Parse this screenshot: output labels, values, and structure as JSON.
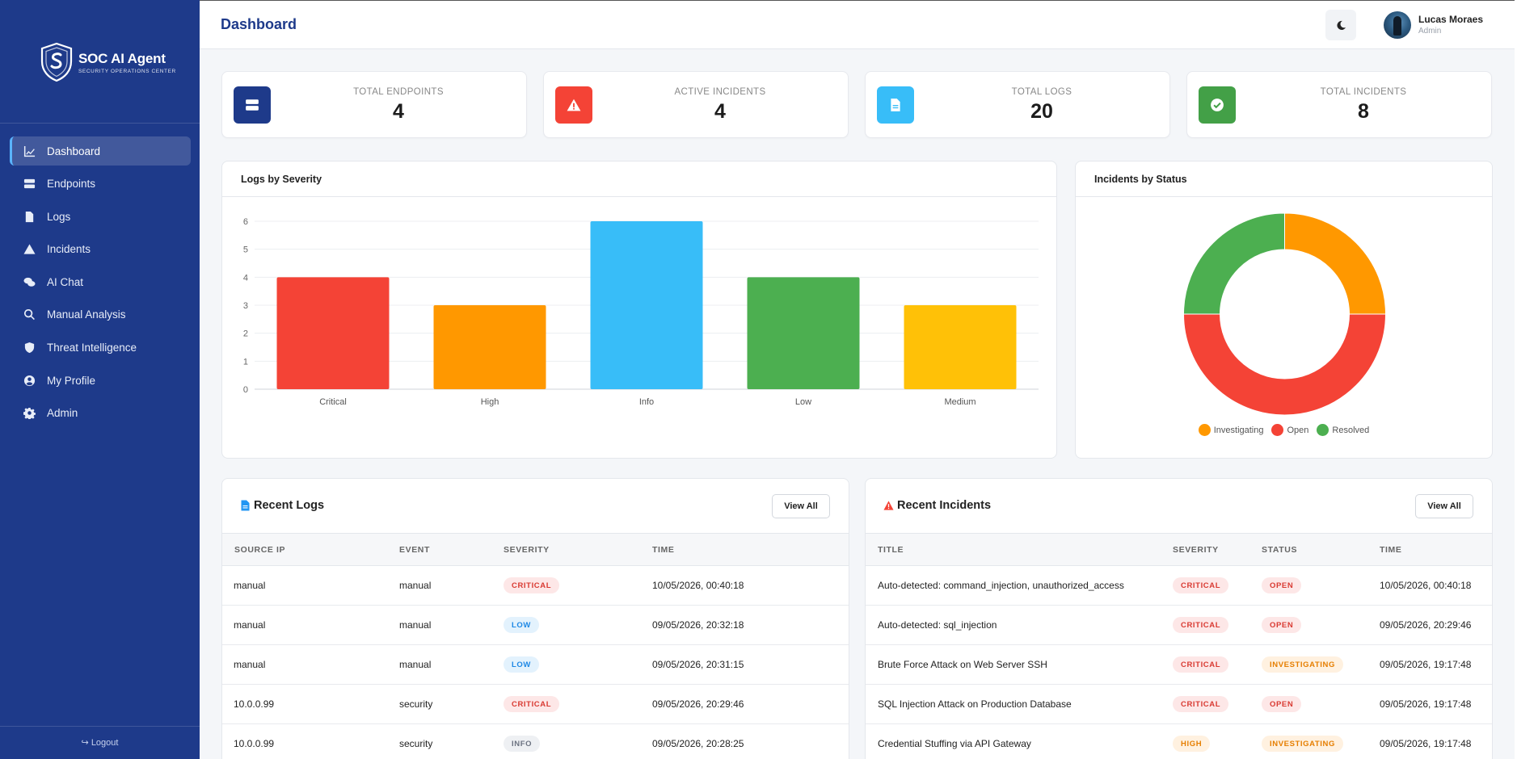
{
  "app": {
    "name": "SOC AI Agent",
    "subtitle": "SECURITY OPERATIONS CENTER"
  },
  "sidebar": {
    "items": [
      {
        "label": "Dashboard",
        "icon": "chart-line-icon"
      },
      {
        "label": "Endpoints",
        "icon": "server-icon"
      },
      {
        "label": "Logs",
        "icon": "file-icon"
      },
      {
        "label": "Incidents",
        "icon": "warning-icon"
      },
      {
        "label": "AI Chat",
        "icon": "comments-icon"
      },
      {
        "label": "Manual Analysis",
        "icon": "search-icon"
      },
      {
        "label": "Threat Intelligence",
        "icon": "shield-icon"
      },
      {
        "label": "My Profile",
        "icon": "user-circle-icon"
      },
      {
        "label": "Admin",
        "icon": "gear-icon"
      }
    ],
    "logout_label": "Logout"
  },
  "header": {
    "title": "Dashboard",
    "user_name": "Lucas Moraes",
    "user_role": "Admin"
  },
  "stats": [
    {
      "label": "TOTAL ENDPOINTS",
      "value": "4",
      "color": "#1e3a8a",
      "icon": "server-icon"
    },
    {
      "label": "ACTIVE INCIDENTS",
      "value": "4",
      "color": "#f44336",
      "icon": "warning-icon"
    },
    {
      "label": "TOTAL LOGS",
      "value": "20",
      "color": "#38bdf8",
      "icon": "file-icon"
    },
    {
      "label": "TOTAL INCIDENTS",
      "value": "8",
      "color": "#43a047",
      "icon": "check-circle-icon"
    }
  ],
  "severity_chart": {
    "title": "Logs by Severity"
  },
  "status_chart": {
    "title": "Incidents by Status"
  },
  "chart_data": [
    {
      "type": "bar",
      "title": "Logs by Severity",
      "categories": [
        "Critical",
        "High",
        "Info",
        "Low",
        "Medium"
      ],
      "values": [
        4,
        3,
        6,
        4,
        3
      ],
      "colors": [
        "#f44336",
        "#ff9800",
        "#38bdf8",
        "#4caf50",
        "#ffc107"
      ],
      "yticks": [
        "0",
        "1",
        "2",
        "3",
        "4",
        "5",
        "6"
      ],
      "ylim": [
        0,
        6
      ],
      "grid": true
    },
    {
      "type": "pie",
      "title": "Incidents by Status",
      "labels": [
        "Investigating",
        "Open",
        "Resolved"
      ],
      "values": [
        2,
        4,
        2
      ],
      "colors": [
        "#ff9800",
        "#f44336",
        "#4caf50"
      ],
      "legend": "bottom"
    }
  ],
  "recent_logs": {
    "title": "Recent Logs",
    "view_all": "View All",
    "columns": [
      "SOURCE IP",
      "EVENT",
      "SEVERITY",
      "TIME"
    ],
    "rows": [
      {
        "source_ip": "manual",
        "event": "manual",
        "severity": "CRITICAL",
        "time": "10/05/2026, 00:40:18"
      },
      {
        "source_ip": "manual",
        "event": "manual",
        "severity": "LOW",
        "time": "09/05/2026, 20:32:18"
      },
      {
        "source_ip": "manual",
        "event": "manual",
        "severity": "LOW",
        "time": "09/05/2026, 20:31:15"
      },
      {
        "source_ip": "10.0.0.99",
        "event": "security",
        "severity": "CRITICAL",
        "time": "09/05/2026, 20:29:46"
      },
      {
        "source_ip": "10.0.0.99",
        "event": "security",
        "severity": "INFO",
        "time": "09/05/2026, 20:28:25"
      }
    ]
  },
  "recent_incidents": {
    "title": "Recent Incidents",
    "view_all": "View All",
    "columns": [
      "TITLE",
      "SEVERITY",
      "STATUS",
      "TIME"
    ],
    "rows": [
      {
        "title": "Auto-detected: command_injection, unauthorized_access",
        "severity": "CRITICAL",
        "status": "OPEN",
        "time": "10/05/2026, 00:40:18"
      },
      {
        "title": "Auto-detected: sql_injection",
        "severity": "CRITICAL",
        "status": "OPEN",
        "time": "09/05/2026, 20:29:46"
      },
      {
        "title": "Brute Force Attack on Web Server SSH",
        "severity": "CRITICAL",
        "status": "INVESTIGATING",
        "time": "09/05/2026, 19:17:48"
      },
      {
        "title": "SQL Injection Attack on Production Database",
        "severity": "CRITICAL",
        "status": "OPEN",
        "time": "09/05/2026, 19:17:48"
      },
      {
        "title": "Credential Stuffing via API Gateway",
        "severity": "HIGH",
        "status": "INVESTIGATING",
        "time": "09/05/2026, 19:17:48"
      }
    ]
  }
}
